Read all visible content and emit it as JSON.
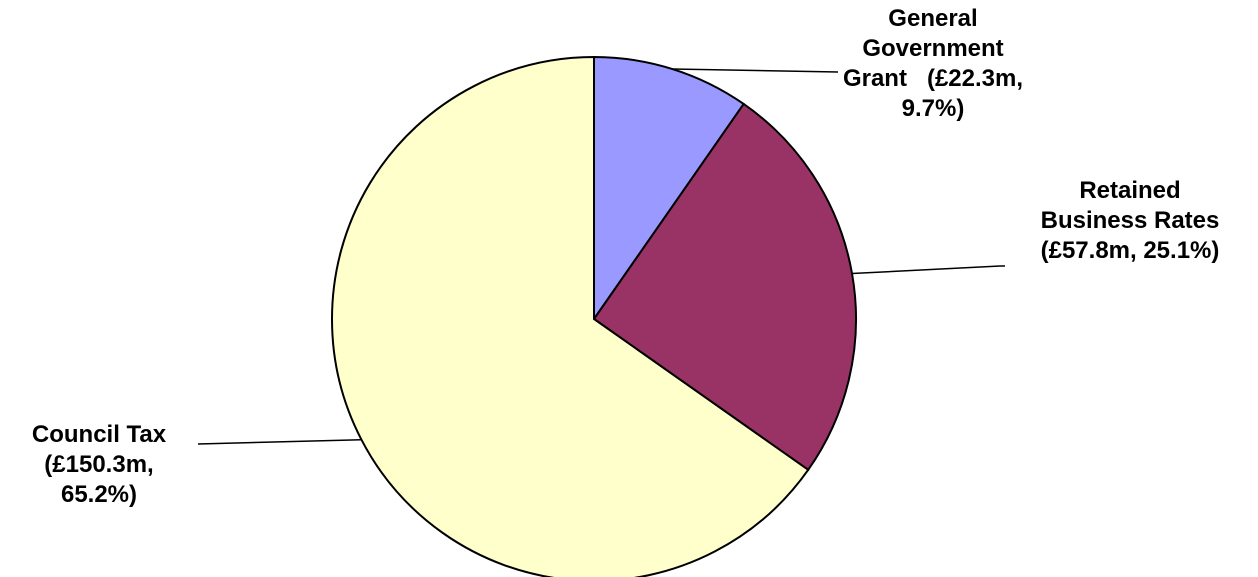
{
  "chart_data": {
    "type": "pie",
    "start_angle_deg": 0,
    "direction": "clockwise",
    "slices": [
      {
        "label_lines": [
          "General",
          "Government",
          "Grant   (£22.3m,",
          "9.7%)"
        ],
        "value": 22.3,
        "percent": 9.7,
        "color": "#9999FF"
      },
      {
        "label_lines": [
          "Retained",
          "Business Rates",
          "(£57.8m, 25.1%)"
        ],
        "value": 57.8,
        "percent": 25.1,
        "color": "#993366"
      },
      {
        "label_lines": [
          "Council Tax",
          "(£150.3m,",
          "65.2%)"
        ],
        "value": 150.3,
        "percent": 65.2,
        "color": "#FFFFCC"
      }
    ],
    "units": "£m"
  }
}
